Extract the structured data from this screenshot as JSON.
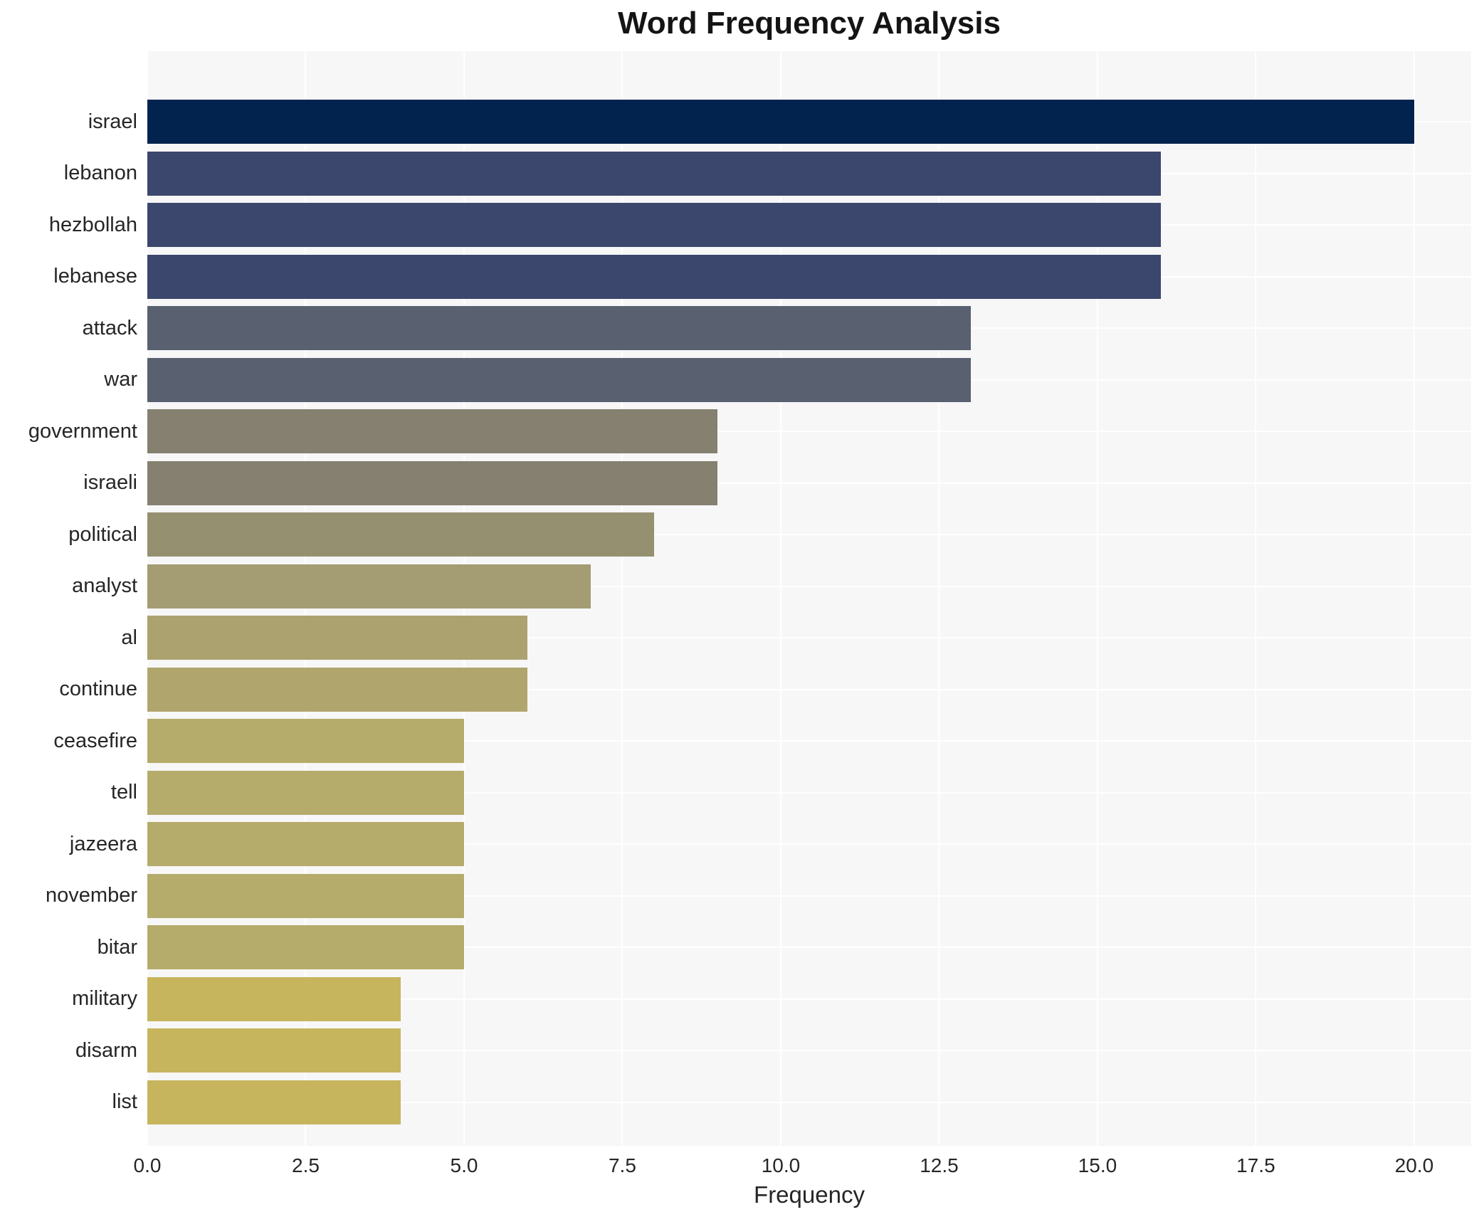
{
  "title": "Word Frequency Analysis",
  "chart_data": {
    "type": "bar",
    "orientation": "horizontal",
    "title": "Word Frequency Analysis",
    "xlabel": "Frequency",
    "ylabel": "",
    "categories": [
      "israel",
      "lebanon",
      "hezbollah",
      "lebanese",
      "attack",
      "war",
      "government",
      "israeli",
      "political",
      "analyst",
      "al",
      "continue",
      "ceasefire",
      "tell",
      "jazeera",
      "november",
      "bitar",
      "military",
      "disarm",
      "list"
    ],
    "values": [
      20,
      16,
      16,
      16,
      13,
      13,
      9,
      9,
      8,
      7,
      6,
      6,
      5,
      5,
      5,
      5,
      5,
      4,
      4,
      4
    ],
    "bar_colors": [
      "#03234f",
      "#3b476c",
      "#3b476c",
      "#3b476c",
      "#596070",
      "#596070",
      "#85806f",
      "#85806f",
      "#95906f",
      "#a49c73",
      "#aca26f",
      "#b0a66d",
      "#b5ab6a",
      "#b5ab6a",
      "#b5ab6a",
      "#b5ab6a",
      "#b5ab6a",
      "#c7b55e",
      "#c7b55e",
      "#c7b55e"
    ],
    "xlim": [
      0,
      20.9
    ],
    "xticks": [
      0,
      2.5,
      5,
      7.5,
      10,
      12.5,
      15,
      17.5,
      20
    ],
    "xtick_labels": [
      "0.0",
      "2.5",
      "5.0",
      "7.5",
      "10.0",
      "12.5",
      "15.0",
      "17.5",
      "20.0"
    ],
    "legend": null,
    "grid": "white vertical gridlines at x ticks, white horizontal gridlines at category centers",
    "plot_background": "#f7f7f8",
    "grid_color": "#ffffff",
    "title_color": "#141414",
    "tick_label_color": "#262626"
  }
}
